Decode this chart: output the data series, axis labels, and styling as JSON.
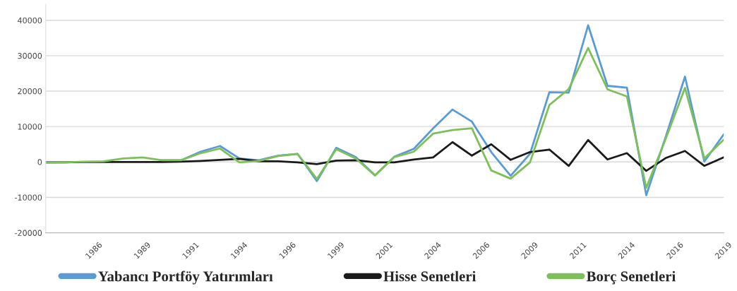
{
  "chart_data": {
    "type": "line",
    "x": [
      1984,
      1985,
      1986,
      1987,
      1988,
      1989,
      1990,
      1991,
      1992,
      1993,
      1994,
      1995,
      1996,
      1997,
      1998,
      1999,
      2000,
      2001,
      2002,
      2003,
      2004,
      2005,
      2006,
      2007,
      2008,
      2009,
      2010,
      2011,
      2012,
      2013,
      2014,
      2015,
      2016,
      2017,
      2018,
      2019
    ],
    "series": [
      {
        "name": "Yabancı Portföy Yatırımları",
        "color": "#5b9bd5",
        "values": [
          null,
          null,
          null,
          null,
          null,
          null,
          500,
          500,
          2900,
          4500,
          1000,
          500,
          1800,
          2300,
          -5400,
          4000,
          1400,
          -3800,
          1500,
          3700,
          9500,
          14800,
          11400,
          2800,
          -3900,
          2300,
          19700,
          19600,
          38600,
          21500,
          21000,
          -9400,
          7000,
          24100,
          100,
          7800
        ]
      },
      {
        "name": "Hisse Senetleri",
        "color": "#1a1a1a",
        "values": [
          -100,
          -100,
          0,
          0,
          0,
          0,
          0,
          100,
          300,
          600,
          900,
          200,
          200,
          -100,
          -600,
          400,
          500,
          -100,
          -100,
          700,
          1300,
          5600,
          1800,
          5000,
          600,
          2800,
          3500,
          -1100,
          6200,
          700,
          2500,
          -2500,
          1100,
          3100,
          -1100,
          1300
        ]
      },
      {
        "name": "Borç Senetleri",
        "color": "#7dc05a",
        "values": [
          -200,
          -100,
          100,
          200,
          1000,
          1300,
          500,
          500,
          2500,
          3800,
          -100,
          300,
          1700,
          2300,
          -4800,
          3600,
          1000,
          -3800,
          1400,
          2900,
          8000,
          9000,
          9500,
          -2400,
          -4700,
          -100,
          16100,
          20600,
          32200,
          20500,
          18500,
          -7300,
          6500,
          20900,
          1000,
          6300
        ]
      }
    ],
    "xlim": [
      1984,
      2019
    ],
    "xticks": [
      {
        "value": 1986.5,
        "label": "1986"
      },
      {
        "value": 1989,
        "label": "1989"
      },
      {
        "value": 1991.5,
        "label": "1991"
      },
      {
        "value": 1994,
        "label": "1994"
      },
      {
        "value": 1996.5,
        "label": "1996"
      },
      {
        "value": 1999,
        "label": "1999"
      },
      {
        "value": 2001.5,
        "label": "2001"
      },
      {
        "value": 2004,
        "label": "2004"
      },
      {
        "value": 2006.5,
        "label": "2006"
      },
      {
        "value": 2009,
        "label": "2009"
      },
      {
        "value": 2011.5,
        "label": "2011"
      },
      {
        "value": 2014,
        "label": "2014"
      },
      {
        "value": 2016.5,
        "label": "2016"
      },
      {
        "value": 2019,
        "label": "2019"
      }
    ],
    "ylim": [
      -20000,
      44500
    ],
    "yticks": [
      -20000,
      -10000,
      0,
      10000,
      20000,
      30000,
      40000
    ],
    "grid": "y",
    "legend": "bottom",
    "marker": "none",
    "line_style": "solid"
  }
}
